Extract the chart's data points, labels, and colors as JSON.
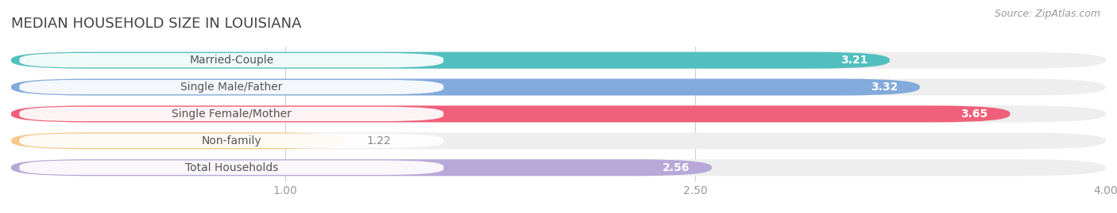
{
  "title": "MEDIAN HOUSEHOLD SIZE IN LOUISIANA",
  "source": "Source: ZipAtlas.com",
  "categories": [
    "Married-Couple",
    "Single Male/Father",
    "Single Female/Mother",
    "Non-family",
    "Total Households"
  ],
  "values": [
    3.21,
    3.32,
    3.65,
    1.22,
    2.56
  ],
  "bar_colors": [
    "#52bfbf",
    "#82aadc",
    "#f0607a",
    "#f5c98a",
    "#b8a8d8"
  ],
  "label_colors": [
    "#52bfbf",
    "#82aadc",
    "#e8406a",
    "#f5c070",
    "#9988cc"
  ],
  "xlim": [
    0.0,
    4.5
  ],
  "xdata_max": 4.0,
  "xticks": [
    1.0,
    2.5,
    4.0
  ],
  "xtick_labels": [
    "1.00",
    "2.50",
    "4.00"
  ],
  "title_fontsize": 13,
  "label_fontsize": 10,
  "value_fontsize": 10,
  "source_fontsize": 9,
  "background_color": "#ffffff",
  "bar_track_color": "#eeeeee",
  "label_text_color": "#555555",
  "value_text_color_inside": "#ffffff",
  "value_text_color_outside": "#888888"
}
